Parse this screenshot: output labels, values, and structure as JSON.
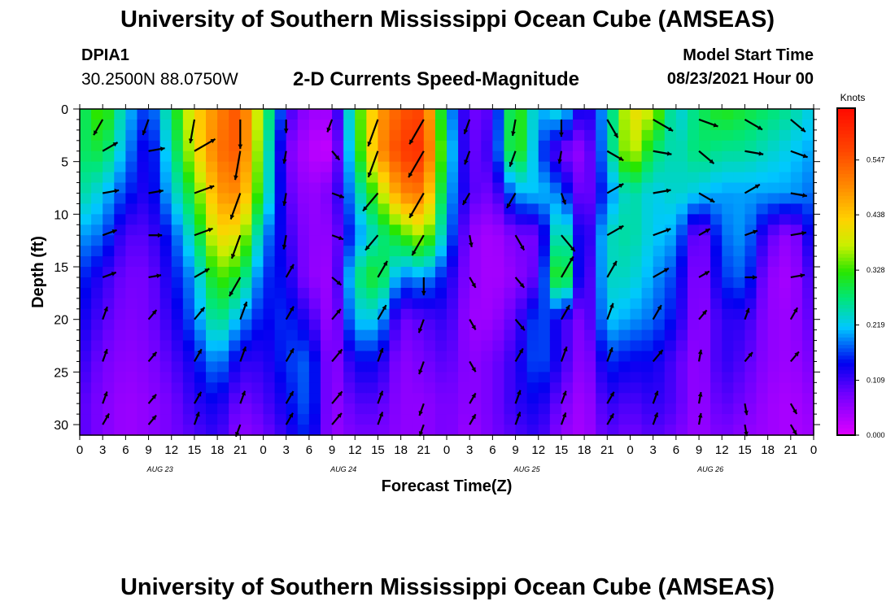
{
  "header": {
    "title": "University of Southern Mississippi Ocean Cube (AMSEAS)",
    "station_id": "DPIA1",
    "station_coords": "30.2500N  88.0750W",
    "plot_title": "2-D Currents Speed-Magnitude",
    "model_start_label": "Model Start Time",
    "model_start_value": "08/23/2021 Hour 00"
  },
  "footer": {
    "title": "University of Southern Mississippi Ocean Cube (AMSEAS)"
  },
  "chart_data": {
    "type": "heatmap",
    "xlabel": "Forecast Time(Z)",
    "ylabel": "Depth (ft)",
    "x_tick_labels": [
      "0",
      "3",
      "6",
      "9",
      "12",
      "15",
      "18",
      "21",
      "0",
      "3",
      "6",
      "9",
      "12",
      "15",
      "18",
      "21",
      "0",
      "3",
      "6",
      "9",
      "12",
      "15",
      "18",
      "21",
      "0",
      "3",
      "6",
      "9",
      "12",
      "15",
      "18",
      "21",
      "0"
    ],
    "date_labels": [
      "AUG 23",
      "AUG 24",
      "AUG 25",
      "AUG 26"
    ],
    "y_ticks": [
      0,
      5,
      10,
      15,
      20,
      25,
      30
    ],
    "xlim_hours": [
      0,
      96
    ],
    "ylim_ft": [
      0,
      31
    ],
    "colorbar": {
      "label": "Knots",
      "range": [
        0,
        0.65
      ],
      "tick_labels": [
        "0.000",
        "0.109",
        "0.219",
        "0.328",
        "0.438",
        "0.547"
      ],
      "tick_values": [
        0,
        0.109,
        0.219,
        0.328,
        0.438,
        0.547
      ]
    },
    "depths_ft": [
      0,
      4,
      8,
      12,
      16,
      20,
      24,
      28,
      31
    ],
    "times_hours": [
      0,
      3,
      6,
      9,
      12,
      15,
      18,
      21,
      24,
      27,
      30,
      33,
      36,
      39,
      42,
      45,
      48,
      51,
      54,
      57,
      60,
      63,
      66,
      69,
      72,
      75,
      78,
      81,
      84,
      87,
      90,
      93,
      96
    ],
    "speed_knots": [
      [
        0.27,
        0.35,
        0.22,
        0.15,
        0.28,
        0.42,
        0.5,
        0.56,
        0.33,
        0.12,
        0.05,
        0.05,
        0.3,
        0.47,
        0.55,
        0.57,
        0.22,
        0.08,
        0.1,
        0.35,
        0.2,
        0.25,
        0.1,
        0.22,
        0.42,
        0.38,
        0.22,
        0.28,
        0.32,
        0.3,
        0.28,
        0.26,
        0.22
      ],
      [
        0.28,
        0.3,
        0.2,
        0.12,
        0.25,
        0.4,
        0.52,
        0.55,
        0.3,
        0.08,
        0.03,
        0.02,
        0.28,
        0.48,
        0.58,
        0.6,
        0.25,
        0.08,
        0.12,
        0.35,
        0.18,
        0.08,
        0.05,
        0.22,
        0.4,
        0.28,
        0.24,
        0.28,
        0.26,
        0.26,
        0.24,
        0.22,
        0.2
      ],
      [
        0.26,
        0.22,
        0.16,
        0.12,
        0.22,
        0.32,
        0.48,
        0.5,
        0.28,
        0.1,
        0.05,
        0.08,
        0.22,
        0.35,
        0.5,
        0.52,
        0.22,
        0.1,
        0.08,
        0.2,
        0.22,
        0.18,
        0.06,
        0.18,
        0.26,
        0.22,
        0.24,
        0.22,
        0.2,
        0.2,
        0.2,
        0.2,
        0.18
      ],
      [
        0.2,
        0.18,
        0.1,
        0.1,
        0.16,
        0.26,
        0.42,
        0.4,
        0.2,
        0.12,
        0.06,
        0.06,
        0.18,
        0.26,
        0.32,
        0.38,
        0.2,
        0.06,
        0.04,
        0.08,
        0.08,
        0.3,
        0.08,
        0.24,
        0.26,
        0.22,
        0.2,
        0.06,
        0.18,
        0.2,
        0.1,
        0.05,
        0.16
      ],
      [
        0.16,
        0.12,
        0.08,
        0.08,
        0.14,
        0.2,
        0.34,
        0.3,
        0.16,
        0.14,
        0.06,
        0.05,
        0.26,
        0.32,
        0.18,
        0.2,
        0.14,
        0.06,
        0.04,
        0.06,
        0.1,
        0.38,
        0.06,
        0.24,
        0.24,
        0.2,
        0.16,
        0.05,
        0.16,
        0.18,
        0.06,
        0.04,
        0.12
      ],
      [
        0.14,
        0.1,
        0.07,
        0.08,
        0.12,
        0.18,
        0.28,
        0.2,
        0.14,
        0.16,
        0.12,
        0.04,
        0.22,
        0.22,
        0.08,
        0.1,
        0.12,
        0.05,
        0.05,
        0.1,
        0.18,
        0.12,
        0.06,
        0.22,
        0.2,
        0.18,
        0.14,
        0.05,
        0.12,
        0.12,
        0.06,
        0.05,
        0.1
      ],
      [
        0.12,
        0.08,
        0.06,
        0.07,
        0.1,
        0.14,
        0.2,
        0.12,
        0.12,
        0.16,
        0.18,
        0.05,
        0.14,
        0.14,
        0.06,
        0.08,
        0.1,
        0.06,
        0.08,
        0.12,
        0.18,
        0.12,
        0.05,
        0.16,
        0.14,
        0.14,
        0.1,
        0.05,
        0.12,
        0.1,
        0.06,
        0.05,
        0.08
      ],
      [
        0.1,
        0.07,
        0.05,
        0.06,
        0.08,
        0.12,
        0.14,
        0.08,
        0.1,
        0.14,
        0.18,
        0.05,
        0.1,
        0.1,
        0.06,
        0.06,
        0.08,
        0.06,
        0.08,
        0.12,
        0.14,
        0.08,
        0.04,
        0.12,
        0.1,
        0.12,
        0.1,
        0.05,
        0.1,
        0.08,
        0.05,
        0.04,
        0.06
      ],
      [
        0.1,
        0.07,
        0.05,
        0.06,
        0.08,
        0.1,
        0.12,
        0.06,
        0.08,
        0.12,
        0.16,
        0.05,
        0.08,
        0.08,
        0.06,
        0.06,
        0.08,
        0.05,
        0.08,
        0.1,
        0.12,
        0.06,
        0.04,
        0.1,
        0.08,
        0.1,
        0.08,
        0.05,
        0.08,
        0.06,
        0.05,
        0.04,
        0.05
      ]
    ],
    "vectors": {
      "depths_ft": [
        1,
        4,
        8,
        12,
        16,
        20,
        24,
        28,
        30
      ],
      "times_hours": [
        3,
        9,
        15,
        21,
        27,
        33,
        39,
        45,
        51,
        57,
        63,
        69,
        75,
        81,
        87,
        93
      ],
      "direction_deg": [
        [
          210,
          200,
          190,
          180,
          180,
          200,
          200,
          210,
          200,
          190,
          180,
          150,
          120,
          110,
          120,
          130
        ],
        [
          60,
          80,
          60,
          190,
          190,
          140,
          200,
          210,
          200,
          200,
          190,
          120,
          100,
          130,
          100,
          110
        ],
        [
          80,
          80,
          70,
          200,
          190,
          110,
          220,
          210,
          210,
          210,
          160,
          60,
          80,
          120,
          60,
          100
        ],
        [
          70,
          90,
          70,
          200,
          190,
          110,
          220,
          210,
          170,
          150,
          140,
          60,
          70,
          60,
          70,
          80
        ],
        [
          70,
          80,
          60,
          210,
          30,
          130,
          30,
          180,
          150,
          140,
          30,
          30,
          60,
          60,
          90,
          80
        ],
        [
          20,
          40,
          40,
          20,
          30,
          40,
          30,
          200,
          150,
          140,
          30,
          20,
          30,
          40,
          20,
          30
        ],
        [
          20,
          40,
          30,
          20,
          30,
          40,
          20,
          200,
          150,
          30,
          20,
          20,
          40,
          10,
          40,
          40
        ],
        [
          20,
          40,
          30,
          20,
          30,
          40,
          20,
          200,
          30,
          20,
          20,
          30,
          20,
          10,
          170,
          150
        ],
        [
          30,
          40,
          20,
          200,
          30,
          40,
          20,
          200,
          30,
          20,
          20,
          30,
          20,
          10,
          170,
          150
        ]
      ],
      "speed_knots": [
        [
          0.22,
          0.18,
          0.38,
          0.52,
          0.1,
          0.1,
          0.5,
          0.5,
          0.15,
          0.18,
          0.2,
          0.3,
          0.35,
          0.28,
          0.28,
          0.25
        ],
        [
          0.2,
          0.18,
          0.38,
          0.52,
          0.08,
          0.05,
          0.48,
          0.55,
          0.12,
          0.18,
          0.08,
          0.24,
          0.24,
          0.26,
          0.24,
          0.22
        ],
        [
          0.18,
          0.14,
          0.3,
          0.48,
          0.08,
          0.08,
          0.36,
          0.5,
          0.1,
          0.2,
          0.06,
          0.24,
          0.22,
          0.22,
          0.2,
          0.18
        ],
        [
          0.14,
          0.1,
          0.26,
          0.4,
          0.12,
          0.06,
          0.26,
          0.36,
          0.06,
          0.2,
          0.3,
          0.24,
          0.24,
          0.08,
          0.1,
          0.16
        ],
        [
          0.12,
          0.08,
          0.2,
          0.32,
          0.14,
          0.06,
          0.24,
          0.22,
          0.06,
          0.1,
          0.38,
          0.24,
          0.22,
          0.06,
          0.06,
          0.12
        ],
        [
          0.1,
          0.07,
          0.16,
          0.24,
          0.14,
          0.1,
          0.18,
          0.12,
          0.06,
          0.12,
          0.18,
          0.2,
          0.18,
          0.06,
          0.06,
          0.1
        ],
        [
          0.09,
          0.07,
          0.12,
          0.16,
          0.14,
          0.16,
          0.12,
          0.1,
          0.06,
          0.14,
          0.16,
          0.14,
          0.14,
          0.06,
          0.06,
          0.08
        ],
        [
          0.08,
          0.06,
          0.1,
          0.1,
          0.12,
          0.16,
          0.1,
          0.08,
          0.06,
          0.12,
          0.1,
          0.1,
          0.1,
          0.05,
          0.05,
          0.06
        ],
        [
          0.08,
          0.06,
          0.1,
          0.08,
          0.1,
          0.14,
          0.1,
          0.06,
          0.06,
          0.1,
          0.08,
          0.08,
          0.08,
          0.05,
          0.05,
          0.05
        ]
      ]
    }
  }
}
